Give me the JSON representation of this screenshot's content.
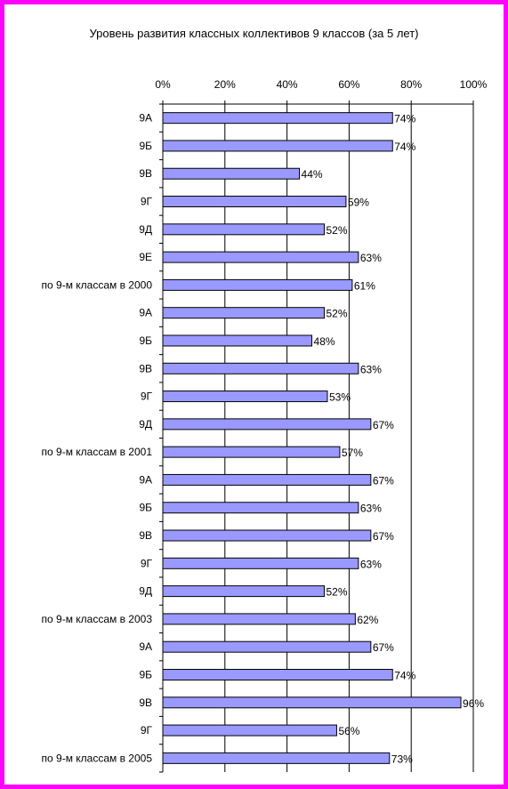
{
  "chart_data": {
    "type": "bar",
    "orientation": "horizontal",
    "title": "Уровень развития классных коллективов 9 классов (за 5 лет)",
    "xlabel": "",
    "ylabel": "",
    "xlim": [
      0,
      100
    ],
    "x_ticks": [
      "0%",
      "20%",
      "40%",
      "60%",
      "80%",
      "100%"
    ],
    "x_axis_position": "top",
    "grid": true,
    "bar_color": "#9999ff",
    "bar_edge_color": "#000000",
    "frame_color": "#ff00ff",
    "categories": [
      "9А",
      "9Б",
      "9В",
      "9Г",
      "9Д",
      "9Е",
      "по 9-м классам в 2000",
      "9А",
      "9Б",
      "9В",
      "9Г",
      "9Д",
      "по 9-м классам в 2001",
      "9А",
      "9Б",
      "9В",
      "9Г",
      "9Д",
      "по 9-м классам в 2003",
      "9А",
      "9Б",
      "9В",
      "9Г",
      "по 9-м классам в 2005"
    ],
    "values": [
      74,
      74,
      44,
      59,
      52,
      63,
      61,
      52,
      48,
      63,
      53,
      67,
      57,
      67,
      63,
      67,
      63,
      52,
      62,
      67,
      74,
      96,
      56,
      73
    ],
    "value_labels": [
      "74%",
      "74%",
      "44%",
      "59%",
      "52%",
      "63%",
      "61%",
      "52%",
      "48%",
      "63%",
      "53%",
      "67%",
      "57%",
      "67%",
      "63%",
      "67%",
      "63%",
      "52%",
      "62%",
      "67%",
      "74%",
      "96%",
      "56%",
      "73%"
    ]
  }
}
